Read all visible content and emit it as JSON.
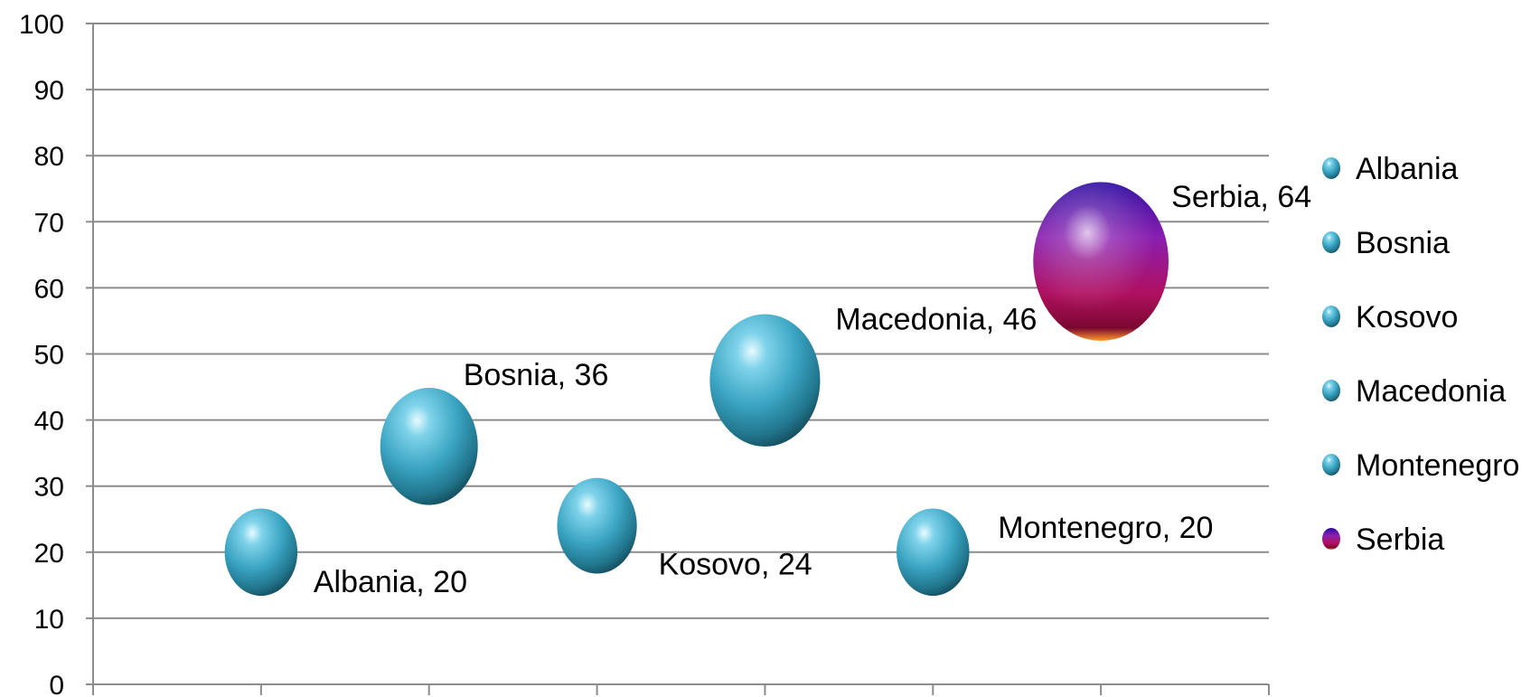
{
  "chart_data": {
    "type": "scatter",
    "title": "",
    "xlabel": "",
    "ylabel": "",
    "ylim": [
      0,
      100
    ],
    "y_ticks": [
      "0",
      "10",
      "20",
      "30",
      "40",
      "50",
      "60",
      "70",
      "80",
      "90",
      "100"
    ],
    "x_categories": 7,
    "grid": "horizontal",
    "legend_position": "right",
    "series": [
      {
        "name": "Albania",
        "x": 1,
        "y": 20,
        "size": 20,
        "label": "Albania, 20",
        "color": "#3fa8c4"
      },
      {
        "name": "Bosnia",
        "x": 2,
        "y": 36,
        "size": 36,
        "label": "Bosnia, 36",
        "color": "#3fa8c4"
      },
      {
        "name": "Kosovo",
        "x": 3,
        "y": 24,
        "size": 24,
        "label": "Kosovo, 24",
        "color": "#3fa8c4"
      },
      {
        "name": "Macedonia",
        "x": 4,
        "y": 46,
        "size": 46,
        "label": "Macedonia, 46",
        "color": "#3fa8c4"
      },
      {
        "name": "Montenegro",
        "x": 5,
        "y": 20,
        "size": 20,
        "label": "Montenegro, 20",
        "color": "#3fa8c4"
      },
      {
        "name": "Serbia",
        "x": 6,
        "y": 64,
        "size": 64,
        "label": "Serbia, 64",
        "color": "#8a1c8c"
      }
    ]
  }
}
